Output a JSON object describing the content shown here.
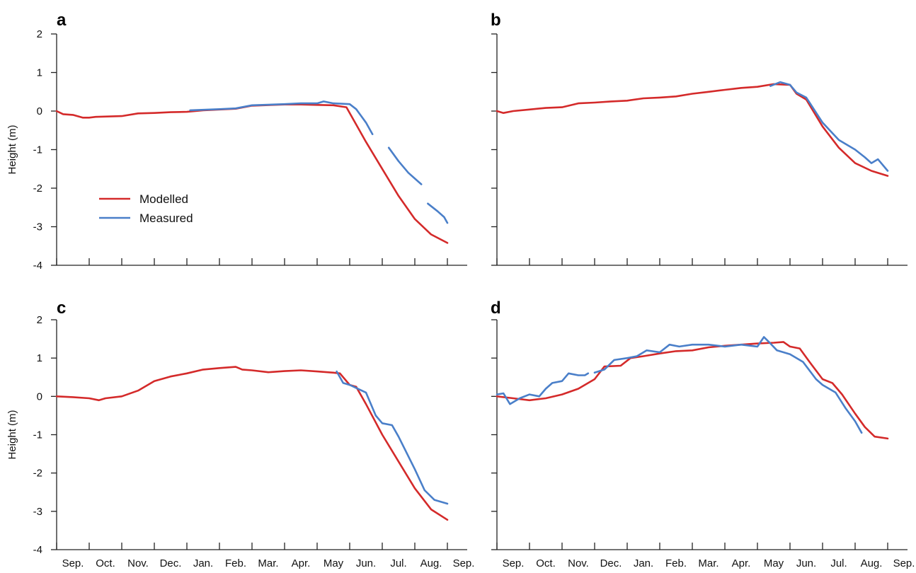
{
  "legend": {
    "placement": "panel-a lower-left",
    "entries": [
      {
        "label": "Modelled",
        "color": "#d42a2a"
      },
      {
        "label": "Measured",
        "color": "#4a7fc9"
      }
    ]
  },
  "colors": {
    "modelled": "#d42a2a",
    "measured": "#4a7fc9",
    "axis": "#222222"
  },
  "chart_data": [
    {
      "type": "line",
      "panel": "a",
      "ylabel": "Height (m)",
      "ylim": [
        -4,
        2
      ],
      "yticks": [
        "2",
        "1",
        "0",
        "-1",
        "-2",
        "-3",
        "-4"
      ],
      "xlim": [
        0,
        12
      ],
      "xtick_labels": [],
      "grid": false,
      "series": [
        {
          "name": "Modelled",
          "color": "#d42a2a",
          "segments": [
            [
              [
                0,
                0
              ],
              [
                0.2,
                -0.08
              ],
              [
                0.5,
                -0.1
              ],
              [
                0.8,
                -0.17
              ],
              [
                1,
                -0.17
              ],
              [
                1.2,
                -0.15
              ],
              [
                2,
                -0.13
              ],
              [
                2.5,
                -0.06
              ],
              [
                3,
                -0.05
              ],
              [
                3.5,
                -0.03
              ],
              [
                4,
                -0.02
              ],
              [
                4.5,
                0.02
              ],
              [
                5,
                0.04
              ],
              [
                5.5,
                0.06
              ],
              [
                6,
                0.14
              ],
              [
                7,
                0.17
              ],
              [
                7.5,
                0.17
              ],
              [
                8,
                0.16
              ],
              [
                8.5,
                0.15
              ],
              [
                8.9,
                0.1
              ],
              [
                9.5,
                -0.8
              ],
              [
                10,
                -1.5
              ],
              [
                10.5,
                -2.2
              ],
              [
                11,
                -2.8
              ],
              [
                11.5,
                -3.2
              ],
              [
                12,
                -3.42
              ]
            ]
          ]
        },
        {
          "name": "Measured",
          "color": "#4a7fc9",
          "segments": [
            [
              [
                4.1,
                0.02
              ],
              [
                5,
                0.05
              ],
              [
                5.5,
                0.07
              ],
              [
                6,
                0.15
              ],
              [
                7,
                0.18
              ],
              [
                7.5,
                0.2
              ],
              [
                8,
                0.2
              ],
              [
                8.2,
                0.25
              ],
              [
                8.5,
                0.2
              ],
              [
                9,
                0.18
              ],
              [
                9.2,
                0.05
              ],
              [
                9.5,
                -0.3
              ],
              [
                9.7,
                -0.6
              ]
            ],
            [
              [
                10.2,
                -0.95
              ],
              [
                10.5,
                -1.3
              ],
              [
                10.8,
                -1.6
              ],
              [
                11,
                -1.75
              ],
              [
                11.2,
                -1.9
              ]
            ],
            [
              [
                11.4,
                -2.4
              ],
              [
                11.7,
                -2.6
              ],
              [
                11.9,
                -2.75
              ],
              [
                12,
                -2.9
              ]
            ]
          ]
        }
      ]
    },
    {
      "type": "line",
      "panel": "b",
      "ylabel": "",
      "ylim": [
        -4,
        2
      ],
      "yticks": [],
      "xlim": [
        0,
        12
      ],
      "xtick_labels": [],
      "grid": false,
      "series": [
        {
          "name": "Modelled",
          "color": "#d42a2a",
          "segments": [
            [
              [
                0,
                0
              ],
              [
                0.2,
                -0.05
              ],
              [
                0.5,
                0.0
              ],
              [
                1,
                0.04
              ],
              [
                1.5,
                0.08
              ],
              [
                2,
                0.1
              ],
              [
                2.5,
                0.2
              ],
              [
                3,
                0.22
              ],
              [
                3.5,
                0.25
              ],
              [
                4,
                0.27
              ],
              [
                4.5,
                0.33
              ],
              [
                5,
                0.35
              ],
              [
                5.5,
                0.38
              ],
              [
                6,
                0.45
              ],
              [
                6.5,
                0.5
              ],
              [
                7,
                0.55
              ],
              [
                7.5,
                0.6
              ],
              [
                8,
                0.63
              ],
              [
                8.5,
                0.7
              ],
              [
                9,
                0.68
              ],
              [
                9.2,
                0.45
              ],
              [
                9.5,
                0.3
              ],
              [
                10,
                -0.4
              ],
              [
                10.5,
                -0.95
              ],
              [
                11,
                -1.35
              ],
              [
                11.5,
                -1.55
              ],
              [
                12,
                -1.68
              ]
            ]
          ]
        },
        {
          "name": "Measured",
          "color": "#4a7fc9",
          "segments": [
            [
              [
                8.4,
                0.65
              ],
              [
                8.7,
                0.75
              ],
              [
                9,
                0.68
              ],
              [
                9.2,
                0.48
              ],
              [
                9.5,
                0.35
              ],
              [
                10,
                -0.3
              ],
              [
                10.5,
                -0.75
              ],
              [
                11,
                -1.0
              ],
              [
                11.3,
                -1.2
              ],
              [
                11.5,
                -1.35
              ],
              [
                11.7,
                -1.25
              ],
              [
                12,
                -1.55
              ]
            ]
          ]
        }
      ]
    },
    {
      "type": "line",
      "panel": "c",
      "ylabel": "Height (m)",
      "ylim": [
        -4,
        2
      ],
      "yticks": [
        "2",
        "1",
        "0",
        "-1",
        "-2",
        "-3",
        "-4"
      ],
      "xlim": [
        0,
        12
      ],
      "xtick_labels": [
        "Sep.",
        "Oct.",
        "Nov.",
        "Dec.",
        "Jan.",
        "Feb.",
        "Mar.",
        "Apr.",
        "May",
        "Jun.",
        "Jul.",
        "Aug.",
        "Sep."
      ],
      "grid": false,
      "series": [
        {
          "name": "Modelled",
          "color": "#d42a2a",
          "segments": [
            [
              [
                0,
                0
              ],
              [
                0.5,
                -0.02
              ],
              [
                1,
                -0.05
              ],
              [
                1.3,
                -0.1
              ],
              [
                1.5,
                -0.05
              ],
              [
                2,
                0.0
              ],
              [
                2.5,
                0.15
              ],
              [
                3,
                0.4
              ],
              [
                3.5,
                0.52
              ],
              [
                4,
                0.6
              ],
              [
                4.5,
                0.7
              ],
              [
                5,
                0.74
              ],
              [
                5.5,
                0.77
              ],
              [
                5.7,
                0.7
              ],
              [
                6,
                0.68
              ],
              [
                6.5,
                0.63
              ],
              [
                7,
                0.66
              ],
              [
                7.5,
                0.68
              ],
              [
                8,
                0.65
              ],
              [
                8.5,
                0.62
              ],
              [
                8.7,
                0.6
              ],
              [
                9,
                0.3
              ],
              [
                9.2,
                0.25
              ],
              [
                9.5,
                -0.2
              ],
              [
                10,
                -1.0
              ],
              [
                10.5,
                -1.7
              ],
              [
                11,
                -2.4
              ],
              [
                11.5,
                -2.95
              ],
              [
                12,
                -3.22
              ]
            ]
          ]
        },
        {
          "name": "Measured",
          "color": "#4a7fc9",
          "segments": [
            [
              [
                8.6,
                0.65
              ],
              [
                8.8,
                0.35
              ],
              [
                9,
                0.3
              ],
              [
                9.5,
                0.1
              ],
              [
                9.8,
                -0.5
              ],
              [
                10,
                -0.7
              ],
              [
                10.3,
                -0.75
              ],
              [
                10.5,
                -1.05
              ],
              [
                11,
                -1.9
              ],
              [
                11.3,
                -2.45
              ],
              [
                11.6,
                -2.7
              ],
              [
                12,
                -2.8
              ]
            ]
          ]
        }
      ]
    },
    {
      "type": "line",
      "panel": "d",
      "ylabel": "",
      "ylim": [
        -4,
        2
      ],
      "yticks": [],
      "xlim": [
        0,
        12
      ],
      "xtick_labels": [
        "Sep.",
        "Oct.",
        "Nov.",
        "Dec.",
        "Jan.",
        "Feb.",
        "Mar.",
        "Apr.",
        "May",
        "Jun.",
        "Jul.",
        "Aug.",
        "Sep."
      ],
      "grid": false,
      "series": [
        {
          "name": "Modelled",
          "color": "#d42a2a",
          "segments": [
            [
              [
                0,
                0
              ],
              [
                0.5,
                -0.05
              ],
              [
                1,
                -0.1
              ],
              [
                1.5,
                -0.05
              ],
              [
                2,
                0.05
              ],
              [
                2.5,
                0.2
              ],
              [
                3,
                0.45
              ],
              [
                3.3,
                0.78
              ],
              [
                3.8,
                0.8
              ],
              [
                4.1,
                1.0
              ],
              [
                4.5,
                1.05
              ],
              [
                5,
                1.12
              ],
              [
                5.5,
                1.18
              ],
              [
                6,
                1.2
              ],
              [
                6.5,
                1.28
              ],
              [
                7,
                1.32
              ],
              [
                7.5,
                1.35
              ],
              [
                8,
                1.38
              ],
              [
                8.5,
                1.4
              ],
              [
                8.8,
                1.42
              ],
              [
                9,
                1.3
              ],
              [
                9.3,
                1.25
              ],
              [
                9.6,
                0.9
              ],
              [
                10,
                0.45
              ],
              [
                10.3,
                0.35
              ],
              [
                10.6,
                0.05
              ],
              [
                11,
                -0.45
              ],
              [
                11.3,
                -0.8
              ],
              [
                11.6,
                -1.05
              ],
              [
                12,
                -1.1
              ]
            ]
          ]
        },
        {
          "name": "Measured",
          "color": "#4a7fc9",
          "segments": [
            [
              [
                0,
                0.05
              ],
              [
                0.2,
                0.08
              ],
              [
                0.4,
                -0.2
              ],
              [
                0.7,
                -0.05
              ],
              [
                1,
                0.05
              ],
              [
                1.3,
                0.0
              ],
              [
                1.5,
                0.2
              ],
              [
                1.7,
                0.35
              ],
              [
                2,
                0.4
              ],
              [
                2.2,
                0.6
              ],
              [
                2.5,
                0.55
              ],
              [
                2.7,
                0.55
              ],
              [
                2.8,
                0.6
              ]
            ],
            [
              [
                3.0,
                0.62
              ],
              [
                3.3,
                0.7
              ],
              [
                3.6,
                0.95
              ],
              [
                4,
                1.0
              ],
              [
                4.3,
                1.05
              ],
              [
                4.6,
                1.2
              ],
              [
                5,
                1.15
              ],
              [
                5.3,
                1.35
              ],
              [
                5.6,
                1.3
              ],
              [
                6,
                1.35
              ],
              [
                6.5,
                1.35
              ],
              [
                7,
                1.3
              ],
              [
                7.5,
                1.35
              ],
              [
                8,
                1.3
              ],
              [
                8.2,
                1.55
              ],
              [
                8.4,
                1.38
              ],
              [
                8.6,
                1.2
              ],
              [
                9,
                1.1
              ],
              [
                9.4,
                0.9
              ],
              [
                9.8,
                0.45
              ],
              [
                10,
                0.3
              ],
              [
                10.4,
                0.1
              ],
              [
                10.7,
                -0.3
              ],
              [
                11,
                -0.65
              ],
              [
                11.2,
                -0.95
              ]
            ]
          ]
        }
      ]
    }
  ]
}
